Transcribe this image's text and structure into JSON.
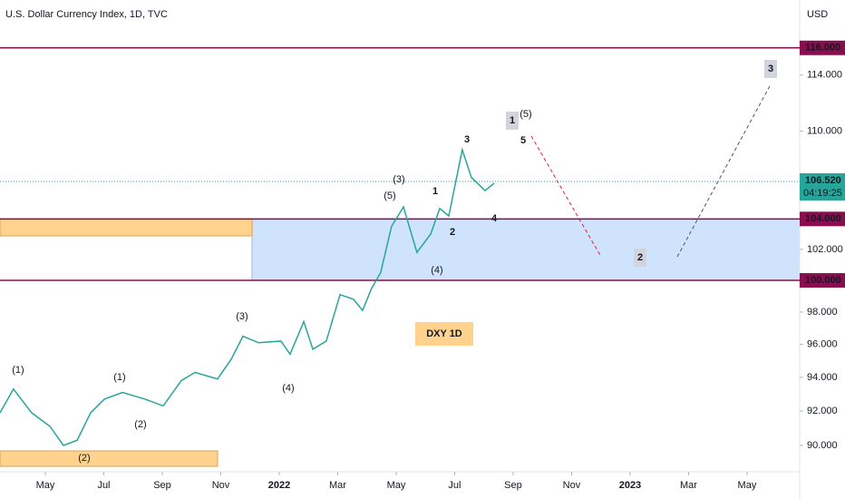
{
  "chart_data": {
    "type": "line",
    "title": "U.S. Dollar Currency Index, 1D, TVC",
    "currency": "USD",
    "log_scale": true,
    "color": "#26a69a",
    "x": [
      2.45,
      2.91,
      3.53,
      4.16,
      4.62,
      5.09,
      5.55,
      6.02,
      6.64,
      7.41,
      8.03,
      8.65,
      9.12,
      9.89,
      10.36,
      10.76,
      11.29,
      12.06,
      12.37,
      12.84,
      13.15,
      13.61,
      14.08,
      14.54,
      14.85,
      15.16,
      15.47,
      15.84,
      16.25,
      16.71,
      17.18,
      17.49,
      17.8,
      18.26,
      18.57,
      19.04,
      19.35
    ],
    "values": [
      91.9,
      93.3,
      91.9,
      91.1,
      90.0,
      90.3,
      91.9,
      92.7,
      93.1,
      92.7,
      92.3,
      93.8,
      94.3,
      93.9,
      95.1,
      96.5,
      96.1,
      96.2,
      95.4,
      97.4,
      95.7,
      96.2,
      99.1,
      98.8,
      98.1,
      99.5,
      100.5,
      103.5,
      104.8,
      101.8,
      103.0,
      104.7,
      104.2,
      108.7,
      106.8,
      105.9,
      106.4
    ],
    "xlim": [
      2.45,
      29.8
    ],
    "xticks": [
      {
        "value": 4,
        "label": "May"
      },
      {
        "value": 6,
        "label": "Jul"
      },
      {
        "value": 8,
        "label": "Sep"
      },
      {
        "value": 10,
        "label": "Nov"
      },
      {
        "value": 12,
        "label": "2022"
      },
      {
        "value": 14,
        "label": "Mar"
      },
      {
        "value": 16,
        "label": "May"
      },
      {
        "value": 18,
        "label": "Jul"
      },
      {
        "value": 20,
        "label": "Sep"
      },
      {
        "value": 22,
        "label": "Nov"
      },
      {
        "value": 24,
        "label": "2023"
      },
      {
        "value": 26,
        "label": "Mar"
      },
      {
        "value": 28,
        "label": "May"
      }
    ],
    "ylim": [
      88.5,
      119.6
    ],
    "yticks": [
      {
        "value": 90,
        "label": "90.000"
      },
      {
        "value": 92,
        "label": "92.000"
      },
      {
        "value": 94,
        "label": "94.000"
      },
      {
        "value": 96,
        "label": "96.000"
      },
      {
        "value": 98,
        "label": "98.000"
      },
      {
        "value": 102,
        "label": "102.000"
      },
      {
        "value": 110,
        "label": "110.000"
      },
      {
        "value": 114,
        "label": "114.000"
      }
    ],
    "price_levels": [
      {
        "value": 116,
        "label": "116.000"
      },
      {
        "value": 104,
        "label": "104.000"
      },
      {
        "value": 100,
        "label": "100.000"
      }
    ],
    "level_color": "#880e4f",
    "current_price": {
      "value": 106.52,
      "label": "106.520",
      "countdown": "04:19:25"
    },
    "annotations": [
      {
        "text": "(1)",
        "color": "#2962ff"
      },
      {
        "text": "(2)",
        "color": "#2962ff"
      },
      {
        "text": "(1)",
        "color": "#e91e43"
      },
      {
        "text": "(2)",
        "color": "#e91e43"
      },
      {
        "text": "(3)",
        "color": "#e91e43"
      },
      {
        "text": "(4)",
        "color": "#e91e43"
      },
      {
        "text": "(5)",
        "color": "#e91e43"
      },
      {
        "text": "(3)",
        "color": "#2962ff"
      },
      {
        "text": "(4)",
        "color": "#2962ff"
      },
      {
        "text": "(5)",
        "color": "#2962ff"
      },
      {
        "text": "1",
        "color": "#ef6c00"
      },
      {
        "text": "2",
        "color": "#ef6c00"
      },
      {
        "text": "3",
        "color": "#ef6c00"
      },
      {
        "text": "4",
        "color": "#ef6c00"
      },
      {
        "text": "5",
        "color": "#ef6c00"
      },
      {
        "text": "1",
        "color": "#131722"
      },
      {
        "text": "2",
        "color": "#131722"
      },
      {
        "text": "3",
        "color": "#131722"
      },
      {
        "text": "DXY  1D",
        "color": "#ef6c00"
      }
    ]
  }
}
